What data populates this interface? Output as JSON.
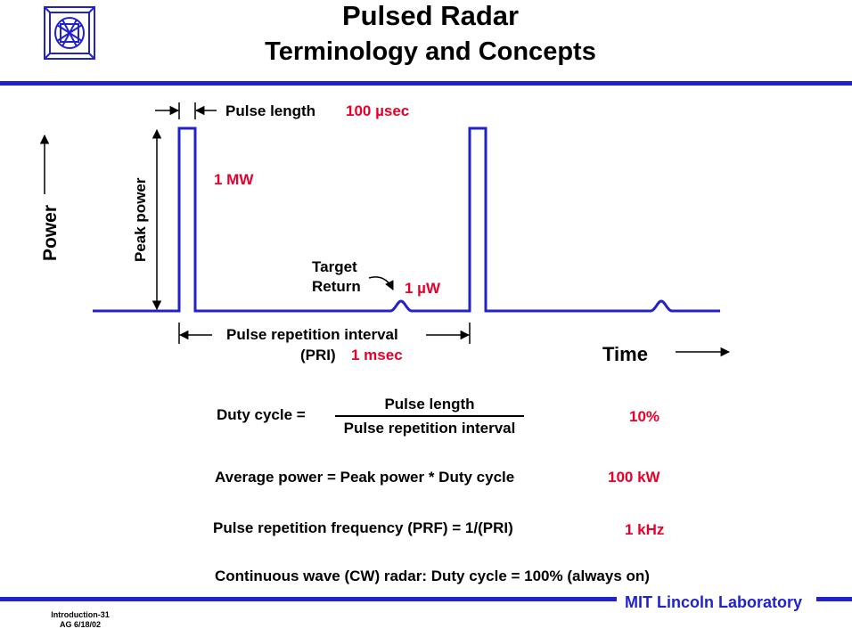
{
  "header": {
    "title": "Pulsed Radar",
    "subtitle": "Terminology and Concepts"
  },
  "diagram": {
    "pulse_length_label": "Pulse length",
    "pulse_length_value": "100 µsec",
    "peak_power_label": "Peak power",
    "peak_power_value": "1 MW",
    "power_axis_label": "Power",
    "time_axis_label": "Time",
    "target_return_line1": "Target",
    "target_return_line2": "Return",
    "target_return_value": "1 µW",
    "pri_label": "Pulse repetition interval",
    "pri_abbrev": "(PRI)",
    "pri_value": "1 msec"
  },
  "formulas": {
    "duty_cycle_label": "Duty cycle =",
    "duty_cycle_numerator": "Pulse length",
    "duty_cycle_denominator": "Pulse repetition interval",
    "duty_cycle_value": "10%",
    "average_power": "Average power = Peak power * Duty cycle",
    "average_power_value": "100 kW",
    "prf": "Pulse repetition frequency (PRF) = 1/(PRI)",
    "prf_value": "1 kHz",
    "cw": "Continuous wave (CW) radar:  Duty cycle = 100%  (always on)"
  },
  "footer": {
    "org": "MIT Lincoln Laboratory",
    "slide_id": "Introduction-31",
    "slide_date": "AG 6/18/02"
  },
  "colors": {
    "accent_blue": "#2222cc",
    "value_red": "#e8002a"
  }
}
